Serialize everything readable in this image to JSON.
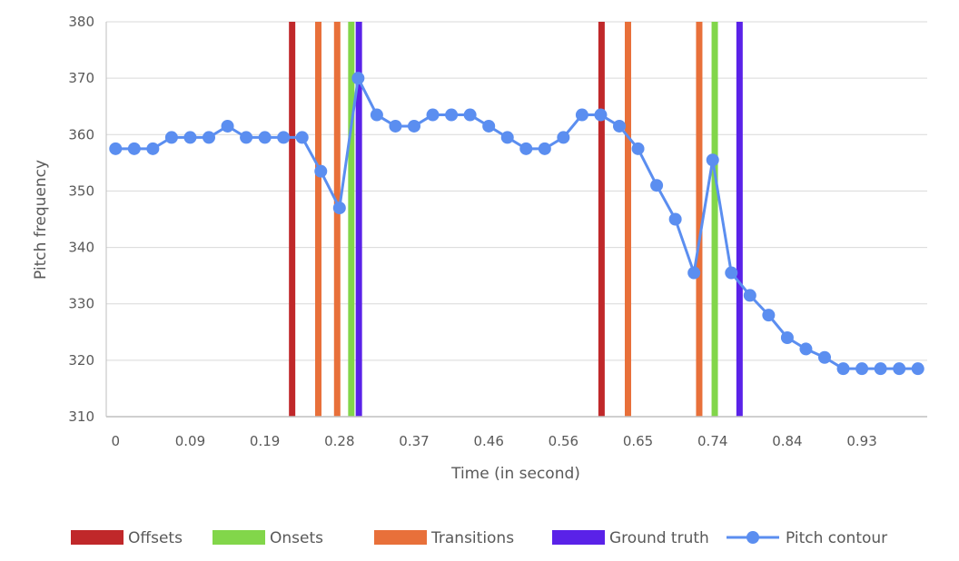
{
  "chart_data": {
    "type": "line",
    "xlabel": "Time (in second)",
    "ylabel": "Pitch frequency",
    "ylim": [
      310,
      380
    ],
    "yticks": [
      310,
      320,
      330,
      340,
      350,
      360,
      370,
      380
    ],
    "xtick_labels": [
      "0",
      "0.09",
      "0.19",
      "0.28",
      "0.37",
      "0.46",
      "0.56",
      "0.65",
      "0.74",
      "0.84",
      "0.93"
    ],
    "xtick_points": [
      0,
      4,
      8,
      12,
      16,
      20,
      24,
      28,
      32,
      36,
      40
    ],
    "grid": "horizontal",
    "legend_position": "bottom",
    "colors": {
      "offsets": "#c0282a",
      "onsets": "#82d64a",
      "transitions": "#e8703a",
      "ground_truth": "#5a22e8",
      "pitch_contour": "#5b8ef0",
      "grid": "#d9d9d9",
      "axis": "#bfbfbf"
    },
    "series": [
      {
        "name": "Pitch contour",
        "values": [
          357.5,
          357.5,
          357.5,
          359.5,
          359.5,
          359.5,
          361.5,
          359.5,
          359.5,
          359.5,
          359.5,
          353.5,
          347,
          370,
          363.5,
          361.5,
          361.5,
          363.5,
          363.5,
          363.5,
          361.5,
          359.5,
          357.5,
          357.5,
          359.5,
          363.5,
          363.5,
          361.5,
          357.5,
          351,
          345,
          335.5,
          355.5,
          335.5,
          331.5,
          328,
          324,
          322,
          320.5,
          318.5,
          318.5,
          318.5,
          318.5,
          318.5
        ]
      }
    ],
    "markers": {
      "Offsets": [
        0.2264,
        0.6033
      ],
      "Onsets": [
        0.2985,
        0.7412
      ],
      "Transitions": [
        0.2583,
        0.2813,
        0.6355,
        0.7223
      ],
      "Ground truth": [
        0.3077,
        0.7714
      ]
    },
    "legend": [
      {
        "label": "Offsets",
        "color_key": "offsets",
        "kind": "box"
      },
      {
        "label": "Onsets",
        "color_key": "onsets",
        "kind": "box"
      },
      {
        "label": "Transitions",
        "color_key": "transitions",
        "kind": "box"
      },
      {
        "label": "Ground truth",
        "color_key": "ground_truth",
        "kind": "box"
      },
      {
        "label": "Pitch contour",
        "color_key": "pitch_contour",
        "kind": "line"
      }
    ]
  }
}
